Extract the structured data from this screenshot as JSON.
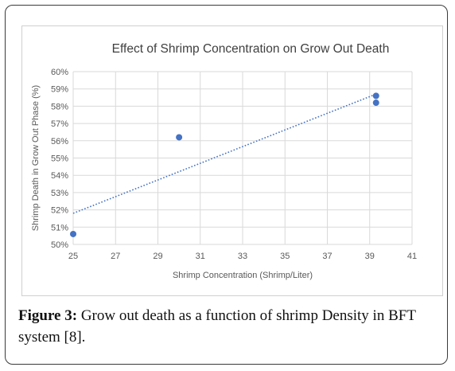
{
  "chart_data": {
    "type": "scatter",
    "title": "Effect of Shrimp Concentration on Grow Out Death",
    "xlabel": "Shrimp Concentration (Shrimp/Liter)",
    "ylabel": "Shrimp Death in Grow Out Phase (%)",
    "xlim": [
      25,
      41
    ],
    "ylim": [
      0.5,
      0.6
    ],
    "x_ticks": [
      25,
      27,
      29,
      31,
      33,
      35,
      37,
      39,
      41
    ],
    "y_ticks": [
      0.5,
      0.51,
      0.52,
      0.53,
      0.54,
      0.55,
      0.56,
      0.57,
      0.58,
      0.59,
      0.6
    ],
    "y_tick_labels": [
      "50%",
      "51%",
      "52%",
      "53%",
      "54%",
      "55%",
      "56%",
      "57%",
      "58%",
      "59%",
      "60%"
    ],
    "grid": true,
    "series": [
      {
        "points": [
          {
            "x": 25.0,
            "y": 0.506
          },
          {
            "x": 30.0,
            "y": 0.562
          },
          {
            "x": 39.3,
            "y": 0.586
          },
          {
            "x": 39.3,
            "y": 0.582
          }
        ],
        "color": "#4472C4"
      }
    ],
    "trendline": {
      "type": "linear",
      "from": {
        "x": 25.0,
        "y": 0.518
      },
      "to": {
        "x": 39.3,
        "y": 0.587
      },
      "style": "dotted",
      "color": "#4472C4"
    }
  },
  "caption": {
    "label": "Figure 3:",
    "text": " Grow out death as a function of shrimp Density in BFT system [8]."
  },
  "colors": {
    "marker": "#4472C4",
    "grid": "#d9d9d9",
    "text": "#595959",
    "title": "#404040"
  }
}
